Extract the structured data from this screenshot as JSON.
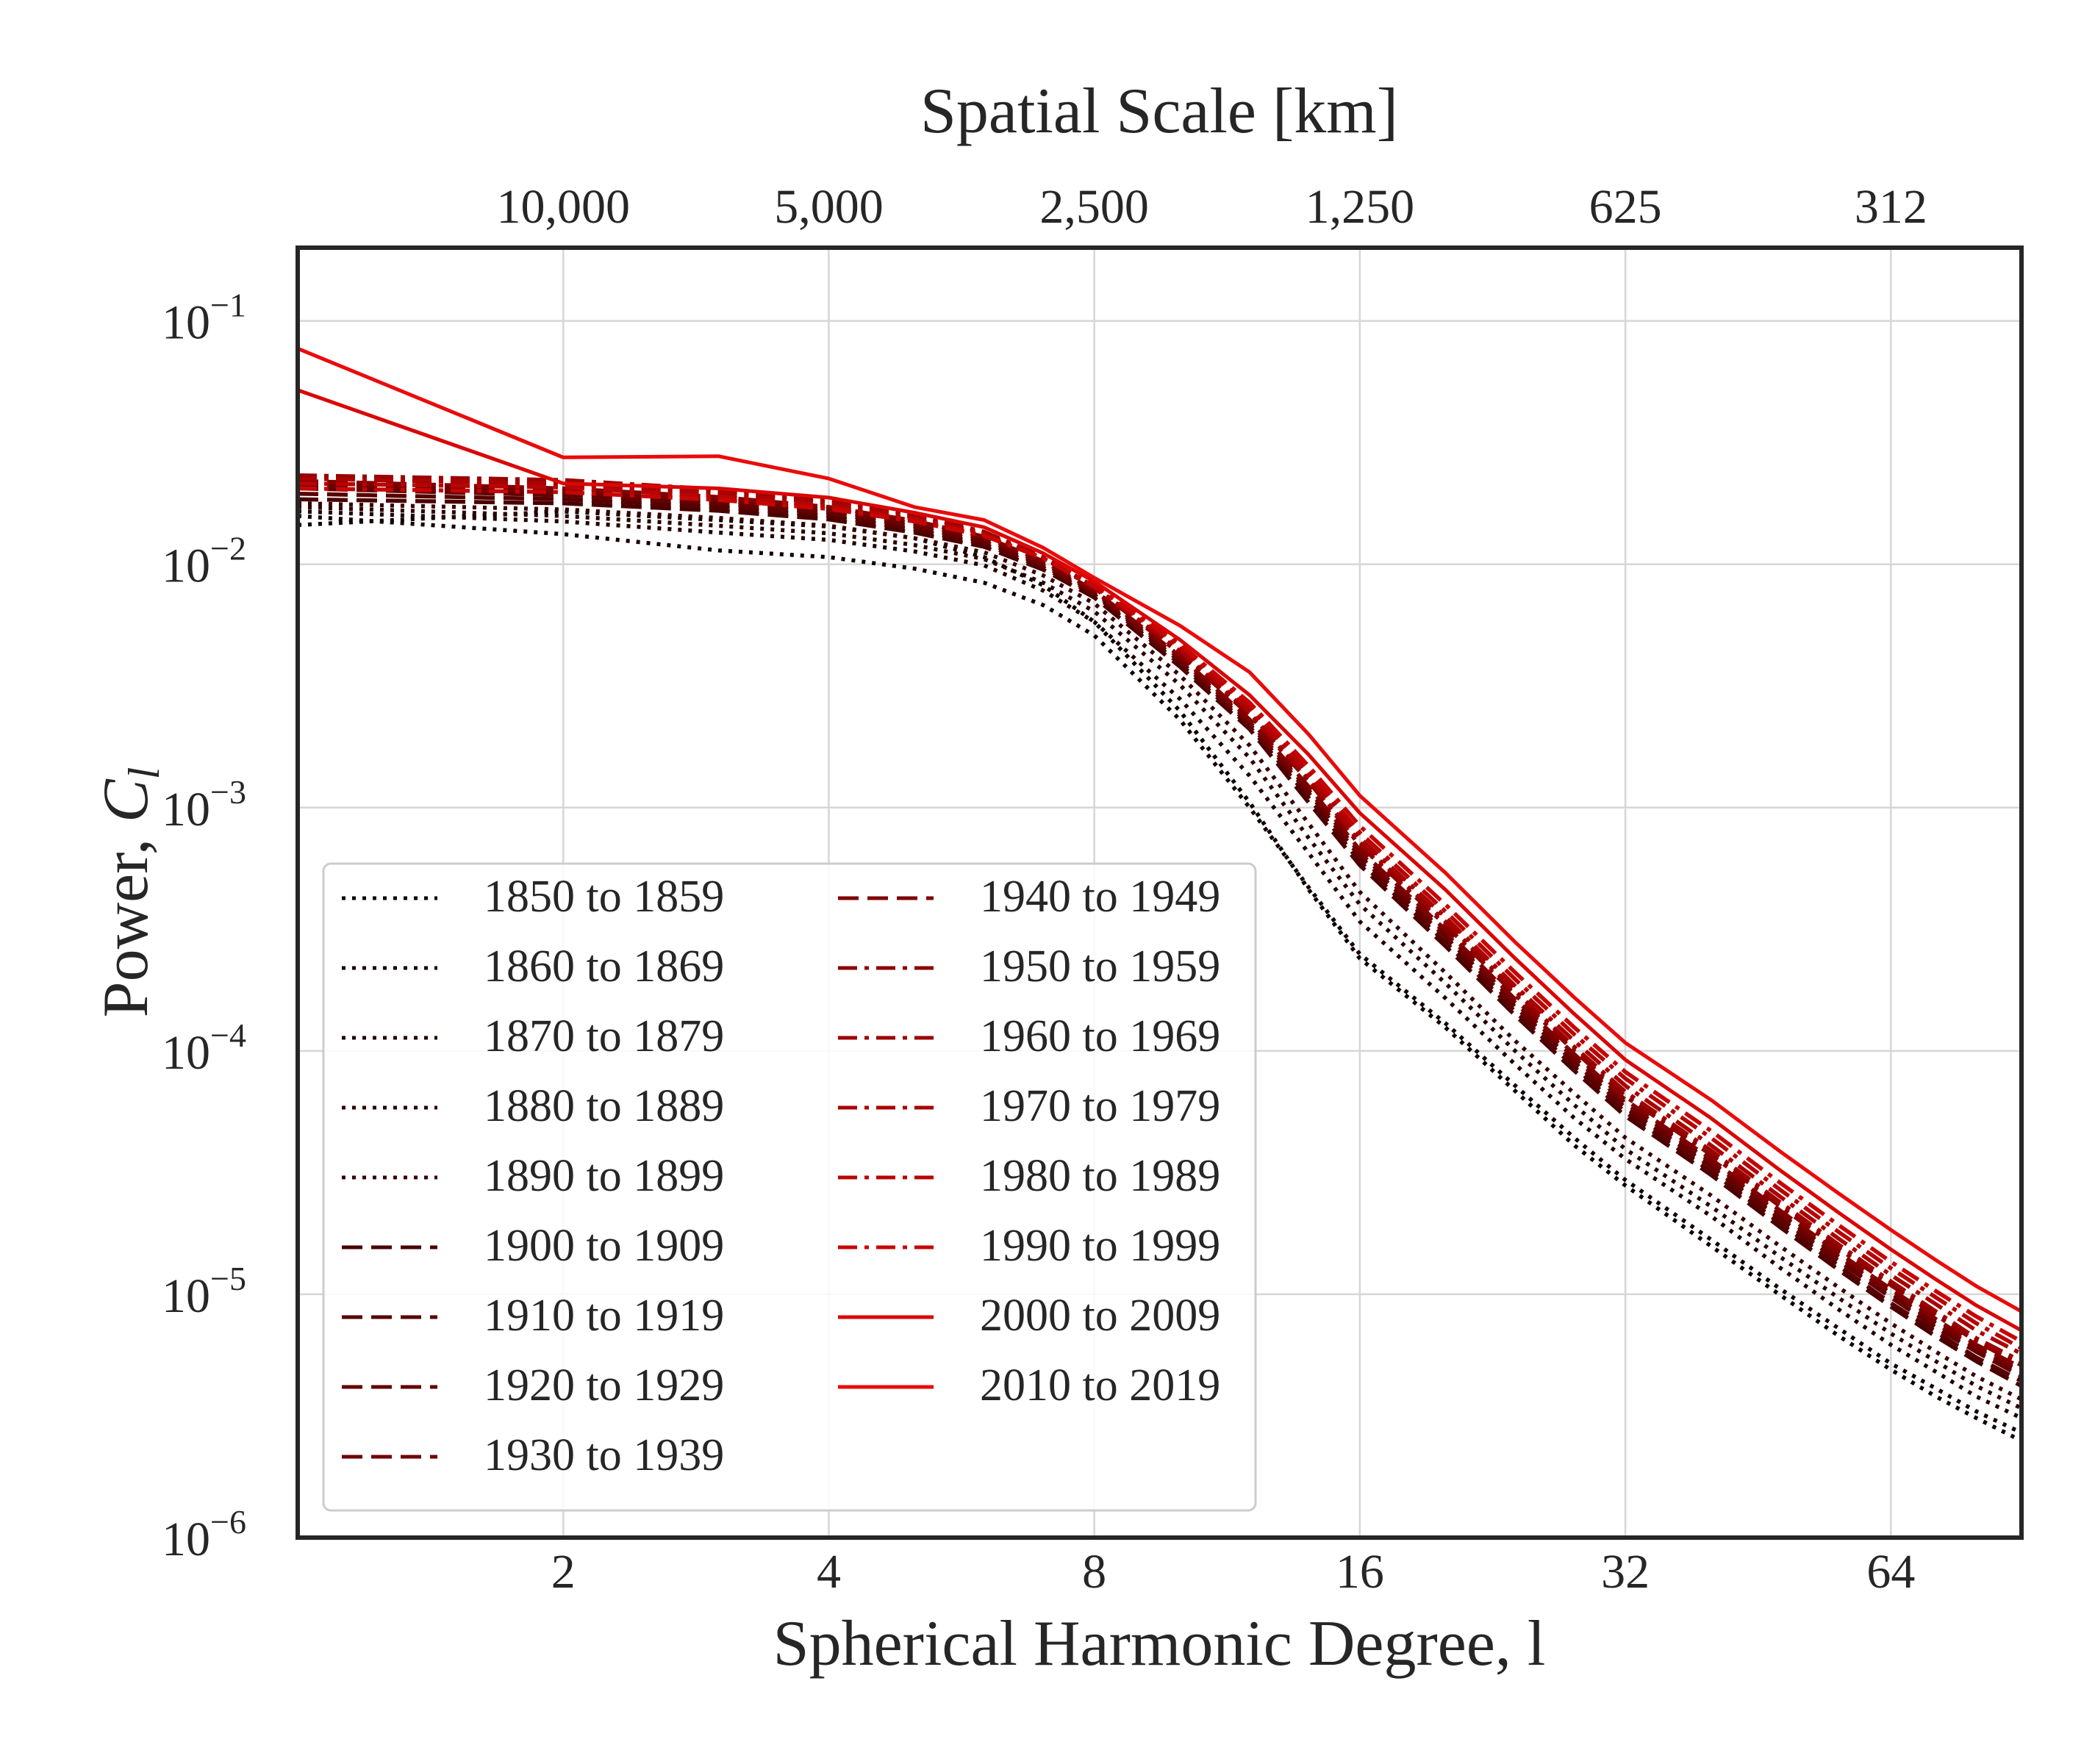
{
  "chart_data": {
    "type": "line",
    "title": "",
    "xlabel": "Spherical Harmonic Degree, l",
    "ylabel_text": "Power, ",
    "ylabel_symbol": "C",
    "ylabel_subscript": "l",
    "top_axis_label": "Spatial Scale [km]",
    "x_scale": "log2",
    "y_scale": "log10",
    "xlim": [
      1,
      90
    ],
    "ylim": [
      1e-06,
      0.2
    ],
    "grid": true,
    "legend_position": "lower-left",
    "legend_columns": 2,
    "x_ticks": [
      {
        "value": 2,
        "label": "2"
      },
      {
        "value": 4,
        "label": "4"
      },
      {
        "value": 8,
        "label": "8"
      },
      {
        "value": 16,
        "label": "16"
      },
      {
        "value": 32,
        "label": "32"
      },
      {
        "value": 64,
        "label": "64"
      }
    ],
    "top_ticks": [
      {
        "value": 2,
        "label": "10,000"
      },
      {
        "value": 4,
        "label": "5,000"
      },
      {
        "value": 8,
        "label": "2,500"
      },
      {
        "value": 16,
        "label": "1,250"
      },
      {
        "value": 32,
        "label": "625"
      },
      {
        "value": 64,
        "label": "312"
      }
    ],
    "y_ticks": [
      {
        "value": 0.1,
        "base": "10",
        "exp": "−1"
      },
      {
        "value": 0.01,
        "base": "10",
        "exp": "−2"
      },
      {
        "value": 0.001,
        "base": "10",
        "exp": "−3"
      },
      {
        "value": 0.0001,
        "base": "10",
        "exp": "−4"
      },
      {
        "value": 1e-05,
        "base": "10",
        "exp": "−5"
      },
      {
        "value": 1e-06,
        "base": "10",
        "exp": "−6"
      }
    ],
    "x": [
      1,
      2,
      3,
      4,
      5,
      6,
      7,
      8,
      10,
      12,
      14,
      16,
      20,
      24,
      28,
      32,
      40,
      48,
      56,
      64,
      72,
      80,
      90
    ],
    "series": [
      {
        "name": "1850 to 1859",
        "color": "#0a0000",
        "style": "dotted",
        "values": [
          0.0145,
          0.0165,
          0.0152,
          0.0143,
          0.0128,
          0.0107,
          0.0082,
          0.0058,
          0.0025,
          0.00105,
          0.00046,
          0.00024,
          0.000125,
          6.85e-05,
          4.1e-05,
          2.8e-05,
          1.58e-05,
          9.9e-06,
          6.7e-06,
          4.9e-06,
          3.8e-06,
          3.1e-06,
          2.5e-06
        ]
      },
      {
        "name": "1860 to 1869",
        "color": "#150000",
        "style": "dotted",
        "values": [
          0.0158,
          0.0133,
          0.0114,
          0.0107,
          0.0096,
          0.0084,
          0.0068,
          0.0051,
          0.0023,
          0.001,
          0.00047,
          0.00025,
          0.00013,
          7.2e-05,
          4.4e-05,
          2.95e-05,
          1.68e-05,
          1.05e-05,
          7.2e-06,
          5.2e-06,
          4.1e-06,
          3.3e-06,
          2.7e-06
        ]
      },
      {
        "name": "1870 to 1879",
        "color": "#210000",
        "style": "dotted",
        "values": [
          0.0165,
          0.015,
          0.0135,
          0.0126,
          0.0113,
          0.0099,
          0.0078,
          0.0058,
          0.0028,
          0.00135,
          0.00065,
          0.00034,
          0.000165,
          8.8e-05,
          5.3e-05,
          3.6e-05,
          2.1e-05,
          1.28e-05,
          8.6e-06,
          6.2e-06,
          4.8e-06,
          3.8e-06,
          3.1e-06
        ]
      },
      {
        "name": "1880 to 1889",
        "color": "#2c0000",
        "style": "dotted",
        "values": [
          0.0172,
          0.0158,
          0.0144,
          0.0134,
          0.012,
          0.0105,
          0.0084,
          0.0064,
          0.0032,
          0.0016,
          0.00075,
          0.0004,
          0.00019,
          0.0001,
          6e-05,
          3.95e-05,
          2.3e-05,
          1.42e-05,
          9.6e-06,
          6.9e-06,
          5.3e-06,
          4.2e-06,
          3.4e-06
        ]
      },
      {
        "name": "1890 to 1899",
        "color": "#380000",
        "style": "dotted",
        "values": [
          0.0178,
          0.0168,
          0.0155,
          0.0144,
          0.0128,
          0.0112,
          0.009,
          0.0069,
          0.0035,
          0.0018,
          0.00086,
          0.00045,
          0.00021,
          0.00011,
          6.7e-05,
          4.4e-05,
          2.55e-05,
          1.57e-05,
          1.06e-05,
          7.6e-06,
          5.8e-06,
          4.6e-06,
          3.7e-06
        ]
      },
      {
        "name": "1900 to 1909",
        "color": "#4a0000",
        "style": "dashed",
        "values": [
          0.0185,
          0.0178,
          0.0166,
          0.0153,
          0.0135,
          0.0118,
          0.0095,
          0.0073,
          0.0038,
          0.0021,
          0.00105,
          0.00058,
          0.00027,
          0.00014,
          8.3e-05,
          5.4e-05,
          3.1e-05,
          1.88e-05,
          1.25e-05,
          8.9e-06,
          6.7e-06,
          5.3e-06,
          4.2e-06
        ]
      },
      {
        "name": "1910 to 1919",
        "color": "#560000",
        "style": "dashed",
        "values": [
          0.0195,
          0.0185,
          0.0172,
          0.0158,
          0.0139,
          0.0121,
          0.0097,
          0.0075,
          0.0039,
          0.00215,
          0.0011,
          0.0006,
          0.00028,
          0.000145,
          8.6e-05,
          5.6e-05,
          3.2e-05,
          1.95e-05,
          1.3e-05,
          9.2e-06,
          7e-06,
          5.5e-06,
          4.4e-06
        ]
      },
      {
        "name": "1920 to 1929",
        "color": "#630000",
        "style": "dashed",
        "values": [
          0.0205,
          0.0192,
          0.0178,
          0.0163,
          0.0143,
          0.0124,
          0.0099,
          0.0076,
          0.004,
          0.0022,
          0.00115,
          0.00063,
          0.000295,
          0.000152,
          9e-05,
          5.85e-05,
          3.35e-05,
          2.04e-05,
          1.36e-05,
          9.7e-06,
          7.3e-06,
          5.8e-06,
          4.6e-06
        ]
      },
      {
        "name": "1930 to 1939",
        "color": "#700000",
        "style": "dashed",
        "values": [
          0.0213,
          0.0198,
          0.0183,
          0.0167,
          0.0147,
          0.0127,
          0.0101,
          0.0077,
          0.0041,
          0.00225,
          0.00118,
          0.00065,
          0.000305,
          0.000158,
          9.4e-05,
          6.1e-05,
          3.5e-05,
          2.13e-05,
          1.42e-05,
          1.01e-05,
          7.6e-06,
          6e-06,
          4.8e-06
        ]
      },
      {
        "name": "1940 to 1949",
        "color": "#7e0000",
        "style": "dashed",
        "values": [
          0.022,
          0.0205,
          0.0189,
          0.0172,
          0.0151,
          0.013,
          0.0103,
          0.0078,
          0.0042,
          0.0023,
          0.00122,
          0.00067,
          0.000315,
          0.000163,
          9.7e-05,
          6.3e-05,
          3.6e-05,
          2.2e-05,
          1.47e-05,
          1.05e-05,
          7.9e-06,
          6.2e-06,
          5e-06
        ]
      },
      {
        "name": "1950 to 1959",
        "color": "#8c0000",
        "style": "dashdot",
        "values": [
          0.0228,
          0.0215,
          0.0198,
          0.018,
          0.0157,
          0.0134,
          0.0106,
          0.008,
          0.0043,
          0.0024,
          0.00128,
          0.0007,
          0.00033,
          0.00017,
          0.0001,
          6.5e-05,
          3.75e-05,
          2.29e-05,
          1.53e-05,
          1.09e-05,
          8.2e-06,
          6.4e-06,
          5.1e-06
        ]
      },
      {
        "name": "1960 to 1969",
        "color": "#9b0202",
        "style": "dashdot",
        "values": [
          0.0232,
          0.0222,
          0.0203,
          0.0184,
          0.016,
          0.0136,
          0.0107,
          0.0081,
          0.0044,
          0.00245,
          0.0013,
          0.00072,
          0.00034,
          0.000176,
          0.000104,
          6.8e-05,
          3.9e-05,
          2.38e-05,
          1.59e-05,
          1.13e-05,
          8.5e-06,
          6.6e-06,
          5.3e-06
        ]
      },
      {
        "name": "1970 to 1979",
        "color": "#a90303",
        "style": "dashdot",
        "values": [
          0.0225,
          0.0214,
          0.0196,
          0.0178,
          0.0156,
          0.0134,
          0.0106,
          0.008,
          0.0045,
          0.0025,
          0.00134,
          0.00075,
          0.000355,
          0.000185,
          0.00011,
          7.2e-05,
          4.1e-05,
          2.51e-05,
          1.68e-05,
          1.2e-05,
          9.1e-06,
          7.1e-06,
          5.7e-06
        ]
      },
      {
        "name": "1980 to 1989",
        "color": "#b80404",
        "style": "dashdot",
        "values": [
          0.0215,
          0.0207,
          0.019,
          0.0173,
          0.0153,
          0.0132,
          0.0106,
          0.0081,
          0.0046,
          0.0026,
          0.0014,
          0.00079,
          0.000375,
          0.000197,
          0.000117,
          7.7e-05,
          4.4e-05,
          2.68e-05,
          1.79e-05,
          1.28e-05,
          9.7e-06,
          7.6e-06,
          6e-06
        ]
      },
      {
        "name": "1990 to 1999",
        "color": "#c70505",
        "style": "dashdot",
        "values": [
          0.0205,
          0.0198,
          0.0184,
          0.0169,
          0.015,
          0.0131,
          0.0106,
          0.0082,
          0.0047,
          0.0027,
          0.00148,
          0.00084,
          0.0004,
          0.00021,
          0.000125,
          8.2e-05,
          4.7e-05,
          2.86e-05,
          1.91e-05,
          1.36e-05,
          1.03e-05,
          8.1e-06,
          6.4e-06
        ]
      },
      {
        "name": "2000 to 2009",
        "color": "#da0606",
        "style": "solid",
        "values": [
          0.052,
          0.0215,
          0.0205,
          0.0188,
          0.0163,
          0.0142,
          0.0111,
          0.0085,
          0.0049,
          0.0029,
          0.00165,
          0.00095,
          0.00046,
          0.00024,
          0.000142,
          9.2e-05,
          5.3e-05,
          3.22e-05,
          2.15e-05,
          1.53e-05,
          1.15e-05,
          9e-06,
          7.1e-06
        ]
      },
      {
        "name": "2010 to 2019",
        "color": "#ea0b0b",
        "style": "solid",
        "values": [
          0.077,
          0.0275,
          0.0278,
          0.0225,
          0.0172,
          0.0152,
          0.0117,
          0.0088,
          0.0056,
          0.0036,
          0.002,
          0.00112,
          0.00054,
          0.00028,
          0.000166,
          0.000108,
          6.3e-05,
          3.85e-05,
          2.58e-05,
          1.84e-05,
          1.38e-05,
          1.08e-05,
          8.5e-06
        ]
      }
    ]
  }
}
